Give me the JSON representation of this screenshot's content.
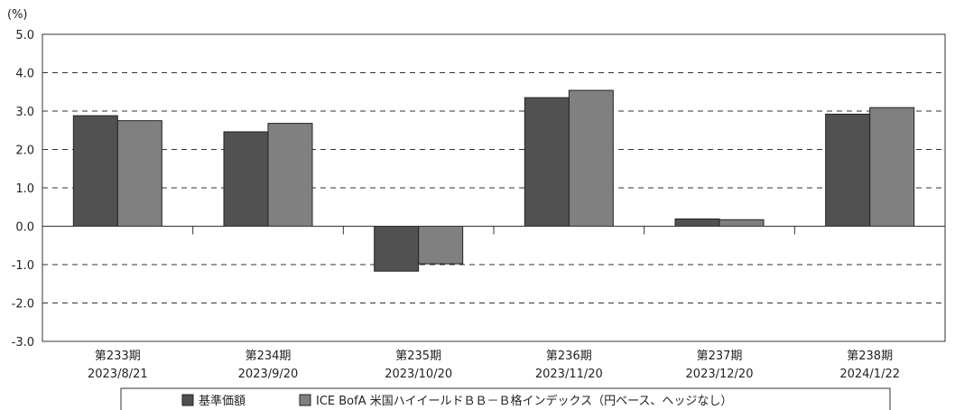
{
  "chart_data": {
    "type": "bar",
    "unit_label": "(%)",
    "categories": [
      {
        "period": "第233期",
        "date": "2023/8/21"
      },
      {
        "period": "第234期",
        "date": "2023/9/20"
      },
      {
        "period": "第235期",
        "date": "2023/10/20"
      },
      {
        "period": "第236期",
        "date": "2023/11/20"
      },
      {
        "period": "第237期",
        "date": "2023/12/20"
      },
      {
        "period": "第238期",
        "date": "2024/1/22"
      }
    ],
    "series": [
      {
        "name": "基準価額",
        "color": "#515151",
        "values": [
          2.88,
          2.46,
          -1.17,
          3.35,
          0.19,
          2.92
        ]
      },
      {
        "name": "ICE BofA 米国ハイイールドＢＢ－Ｂ格インデックス（円ベース、ヘッジなし）",
        "color": "#808080",
        "values": [
          2.75,
          2.68,
          -0.98,
          3.54,
          0.17,
          3.09
        ]
      }
    ],
    "ylim": [
      -3.0,
      5.0
    ],
    "yticks": [
      "5.0",
      "4.0",
      "3.0",
      "2.0",
      "1.0",
      "0.0",
      "-1.0",
      "-2.0",
      "-3.0"
    ],
    "ytick_values": [
      5,
      4,
      3,
      2,
      1,
      0,
      -1,
      -2,
      -3
    ],
    "grid": true,
    "grid_style": "dashed",
    "legend_position": "bottom"
  }
}
